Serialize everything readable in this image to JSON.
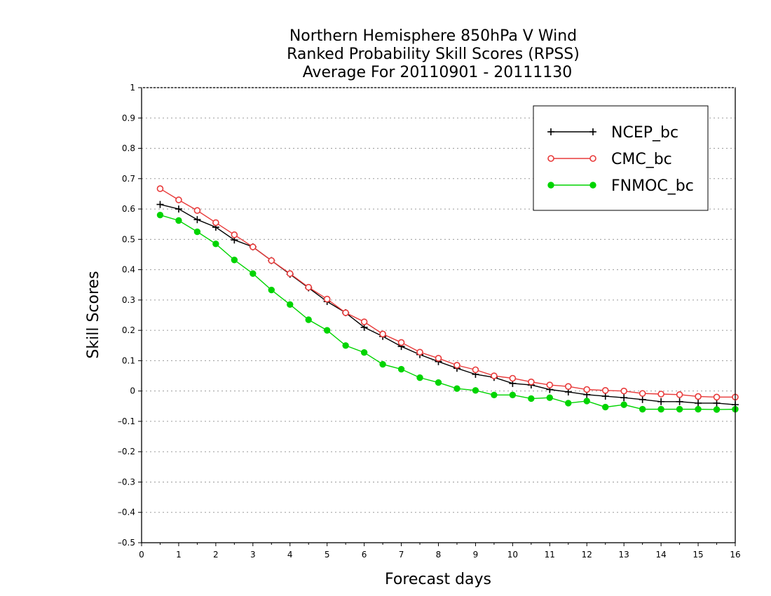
{
  "chart_data": {
    "type": "line",
    "title_lines": [
      "Northern Hemisphere 850hPa V Wind",
      "Ranked Probability Skill Scores (RPSS)",
      "Average For 20110901 - 20111130"
    ],
    "xlabel": "Forecast days",
    "ylabel": "Skill Scores",
    "xlim": [
      0,
      16
    ],
    "ylim": [
      -0.5,
      1
    ],
    "x_ticks": [
      "0",
      "1",
      "2",
      "3",
      "4",
      "5",
      "6",
      "7",
      "8",
      "9",
      "10",
      "11",
      "12",
      "13",
      "14",
      "15",
      "16"
    ],
    "y_ticks": [
      "–0.5",
      "–0.4",
      "–0.3",
      "–0.2",
      "–0.1",
      "0",
      "0.1",
      "0.2",
      "0.3",
      "0.4",
      "0.5",
      "0.6",
      "0.7",
      "0.8",
      "0.9",
      "1"
    ],
    "grid": "horizontal dotted",
    "legend_position": "top-right",
    "x": [
      0.5,
      1,
      1.5,
      2,
      2.5,
      3,
      3.5,
      4,
      4.5,
      5,
      5.5,
      6,
      6.5,
      7,
      7.5,
      8,
      8.5,
      9,
      9.5,
      10,
      10.5,
      11,
      11.5,
      12,
      12.5,
      13,
      13.5,
      14,
      14.5,
      15,
      15.5,
      16
    ],
    "series": [
      {
        "name": "NCEP_bc",
        "color": "#000000",
        "marker": "plus",
        "values": [
          0.615,
          0.6,
          0.565,
          0.54,
          0.498,
          0.475,
          0.43,
          0.385,
          0.34,
          0.295,
          0.258,
          0.21,
          0.18,
          0.147,
          0.12,
          0.097,
          0.075,
          0.055,
          0.045,
          0.025,
          0.02,
          0.005,
          -0.003,
          -0.012,
          -0.017,
          -0.022,
          -0.028,
          -0.035,
          -0.035,
          -0.04,
          -0.04,
          -0.045
        ]
      },
      {
        "name": "CMC_bc",
        "color": "#e83a3a",
        "marker": "open-circle",
        "values": [
          0.667,
          0.63,
          0.595,
          0.555,
          0.515,
          0.475,
          0.43,
          0.387,
          0.342,
          0.303,
          0.258,
          0.228,
          0.188,
          0.16,
          0.128,
          0.108,
          0.085,
          0.07,
          0.05,
          0.042,
          0.03,
          0.02,
          0.015,
          0.005,
          0.002,
          0.0,
          -0.008,
          -0.01,
          -0.012,
          -0.018,
          -0.02,
          -0.02
        ]
      },
      {
        "name": "FNMOC_bc",
        "color": "#00d400",
        "marker": "filled-circle",
        "values": [
          0.58,
          0.562,
          0.525,
          0.485,
          0.432,
          0.387,
          0.333,
          0.285,
          0.235,
          0.2,
          0.15,
          0.127,
          0.088,
          0.072,
          0.044,
          0.028,
          0.008,
          0.002,
          -0.013,
          -0.013,
          -0.025,
          -0.022,
          -0.04,
          -0.033,
          -0.053,
          -0.045,
          -0.06,
          -0.06,
          -0.06,
          -0.06,
          -0.061,
          -0.06
        ]
      }
    ]
  }
}
